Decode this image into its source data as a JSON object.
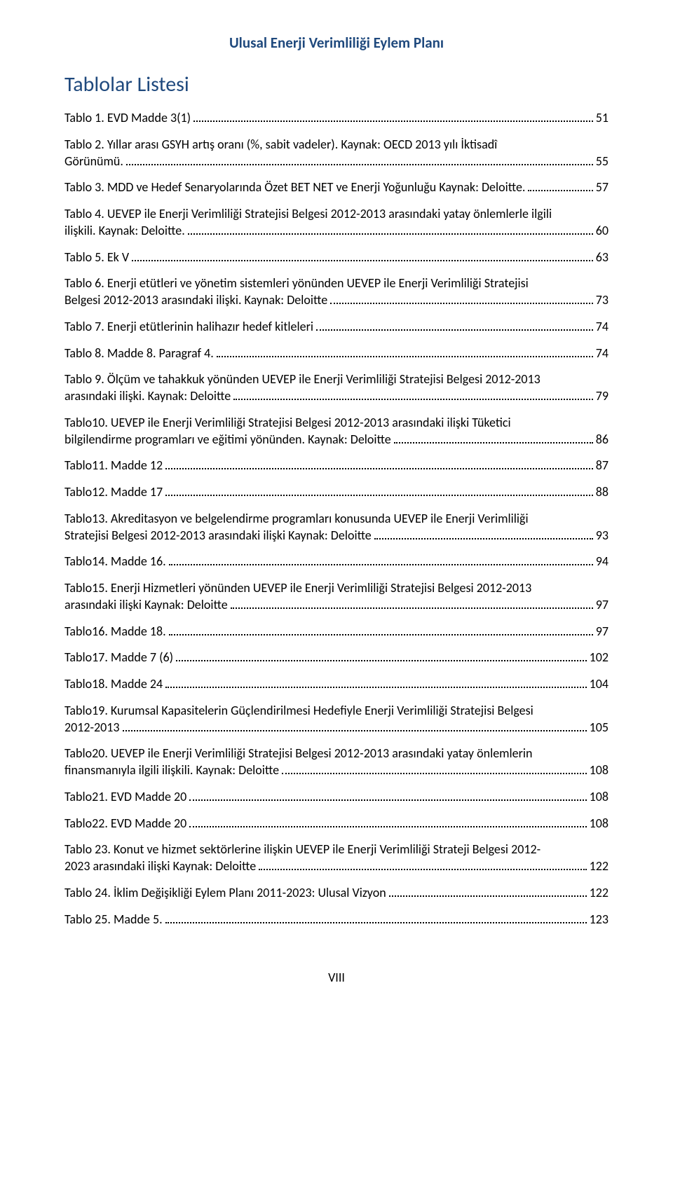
{
  "header": {
    "title": "Ulusal Enerji Verimliliği Eylem Planı"
  },
  "section": {
    "title": "Tablolar Listesi"
  },
  "footer": {
    "page_number": "VIII"
  },
  "colors": {
    "heading": "#1f497d",
    "text": "#000000",
    "background": "#ffffff",
    "leader": "#000000"
  },
  "typography": {
    "header_fontsize": 21,
    "section_fontsize": 30,
    "entry_fontsize": 18,
    "footer_fontsize": 18,
    "font_family": "Calibri"
  },
  "toc": [
    {
      "lines": [
        "Tablo 1. EVD Madde 3(1)"
      ],
      "page": "51"
    },
    {
      "lines": [
        "Tablo 2. Yıllar arası GSYH artış oranı (%, sabit vadeler). Kaynak: OECD 2013 yılı İktisadî",
        "Görünümü."
      ],
      "page": "55"
    },
    {
      "lines": [
        "Tablo 3. MDD ve Hedef Senaryolarında Özet BET NET ve Enerji Yoğunluğu Kaynak: Deloitte."
      ],
      "page": "57"
    },
    {
      "lines": [
        "Tablo 4. UEVEP ile Enerji Verimliliği Stratejisi Belgesi 2012-2013 arasındaki yatay önlemlerle ilgili",
        "ilişkili. Kaynak: Deloitte."
      ],
      "page": "60"
    },
    {
      "lines": [
        "Tablo 5. Ek V"
      ],
      "page": "63"
    },
    {
      "lines": [
        "Tablo 6. Enerji etütleri ve yönetim sistemleri yönünden UEVEP ile Enerji Verimliliği Stratejisi",
        "Belgesi 2012-2013 arasındaki ilişki. Kaynak: Deloitte"
      ],
      "page": "73"
    },
    {
      "lines": [
        "Tablo 7. Enerji etütlerinin halihazır hedef kitleleri"
      ],
      "page": "74"
    },
    {
      "lines": [
        "Tablo 8. Madde 8. Paragraf 4."
      ],
      "page": "74"
    },
    {
      "lines": [
        "Tablo 9. Ölçüm ve tahakkuk yönünden UEVEP ile Enerji Verimliliği Stratejisi Belgesi 2012-2013",
        "arasındaki ilişki. Kaynak: Deloitte"
      ],
      "page": "79"
    },
    {
      "lines": [
        "Tablo10. UEVEP ile Enerji Verimliliği Stratejisi Belgesi 2012-2013 arasındaki ilişki Tüketici",
        "bilgilendirme programları ve eğitimi yönünden. Kaynak: Deloitte"
      ],
      "page": "86"
    },
    {
      "lines": [
        "Tablo11. Madde 12"
      ],
      "page": "87"
    },
    {
      "lines": [
        "Tablo12. Madde 17"
      ],
      "page": "88"
    },
    {
      "lines": [
        "Tablo13. Akreditasyon ve belgelendirme programları konusunda UEVEP ile Enerji Verimliliği",
        "Stratejisi Belgesi 2012-2013 arasındaki ilişki Kaynak: Deloitte"
      ],
      "page": "93"
    },
    {
      "lines": [
        "Tablo14. Madde 16."
      ],
      "page": "94"
    },
    {
      "lines": [
        "Tablo15. Enerji Hizmetleri yönünden UEVEP ile Enerji Verimliliği Stratejisi Belgesi 2012-2013",
        "arasındaki ilişki Kaynak: Deloitte"
      ],
      "page": "97"
    },
    {
      "lines": [
        "Tablo16. Madde 18."
      ],
      "page": "97"
    },
    {
      "lines": [
        "Tablo17. Madde 7 (6)"
      ],
      "page": "102"
    },
    {
      "lines": [
        "Tablo18. Madde 24"
      ],
      "page": "104"
    },
    {
      "lines": [
        "Tablo19. Kurumsal Kapasitelerin Güçlendirilmesi Hedefiyle Enerji Verimliliği Stratejisi Belgesi",
        "2012-2013"
      ],
      "page": "105"
    },
    {
      "lines": [
        "Tablo20. UEVEP ile Enerji Verimliliği Stratejisi Belgesi 2012-2013 arasındaki yatay önlemlerin",
        "finansmanıyla ilgili ilişkili. Kaynak: Deloitte"
      ],
      "page": "108"
    },
    {
      "lines": [
        "Tablo21. EVD Madde 20"
      ],
      "page": "108"
    },
    {
      "lines": [
        "Tablo22. EVD Madde 20"
      ],
      "page": "108"
    },
    {
      "lines": [
        "Tablo 23. Konut ve hizmet sektörlerine ilişkin UEVEP ile Enerji Verimliliği Strateji Belgesi 2012-",
        "2023 arasındaki ilişki Kaynak: Deloitte"
      ],
      "page": "122"
    },
    {
      "lines": [
        "Tablo 24. İklim Değişikliği Eylem Planı 2011-2023: Ulusal Vizyon"
      ],
      "page": "122"
    },
    {
      "lines": [
        "Tablo 25. Madde 5."
      ],
      "page": "123"
    }
  ]
}
